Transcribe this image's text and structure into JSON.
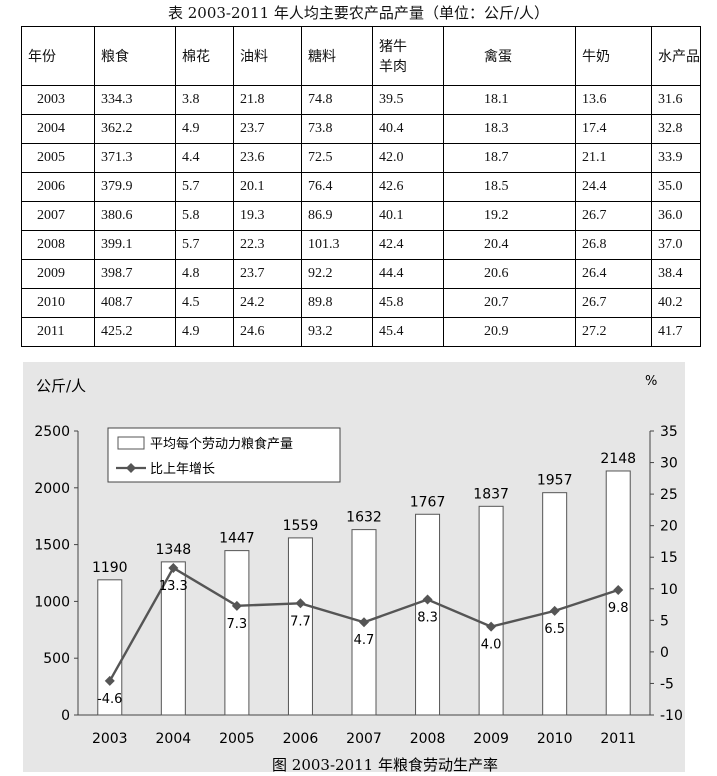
{
  "table": {
    "title": "表 2003-2011 年人均主要农产品产量（单位：公斤/人）",
    "columns": [
      "年份",
      "粮食",
      "棉花",
      "油料",
      "糖料",
      "猪牛羊肉",
      "禽蛋",
      "牛奶",
      "水产品"
    ],
    "rows": [
      [
        "2003",
        "334.3",
        "3.8",
        "21.8",
        "74.8",
        "39.5",
        "18.1",
        "13.6",
        "31.6"
      ],
      [
        "2004",
        "362.2",
        "4.9",
        "23.7",
        "73.8",
        "40.4",
        "18.3",
        "17.4",
        "32.8"
      ],
      [
        "2005",
        "371.3",
        "4.4",
        "23.6",
        "72.5",
        "42.0",
        "18.7",
        "21.1",
        "33.9"
      ],
      [
        "2006",
        "379.9",
        "5.7",
        "20.1",
        "76.4",
        "42.6",
        "18.5",
        "24.4",
        "35.0"
      ],
      [
        "2007",
        "380.6",
        "5.8",
        "19.3",
        "86.9",
        "40.1",
        "19.2",
        "26.7",
        "36.0"
      ],
      [
        "2008",
        "399.1",
        "5.7",
        "22.3",
        "101.3",
        "42.4",
        "20.4",
        "26.8",
        "37.0"
      ],
      [
        "2009",
        "398.7",
        "4.8",
        "23.7",
        "92.2",
        "44.4",
        "20.6",
        "26.4",
        "38.4"
      ],
      [
        "2010",
        "408.7",
        "4.5",
        "24.2",
        "89.8",
        "45.8",
        "20.7",
        "26.7",
        "40.2"
      ],
      [
        "2011",
        "425.2",
        "4.9",
        "24.6",
        "93.2",
        "45.4",
        "20.9",
        "27.2",
        "41.7"
      ]
    ]
  },
  "chart_data": {
    "type": "bar",
    "title": "图 2003-2011 年粮食劳动生产率",
    "categories": [
      "2003",
      "2004",
      "2005",
      "2006",
      "2007",
      "2008",
      "2009",
      "2010",
      "2011"
    ],
    "left_axis_label": "公斤/人",
    "right_axis_label": "%",
    "left_ticks": [
      "0",
      "500",
      "1000",
      "1500",
      "2000",
      "2500"
    ],
    "right_ticks": [
      "-10",
      "-5",
      "0",
      "5",
      "10",
      "15",
      "20",
      "25",
      "30",
      "35"
    ],
    "ylim_left": [
      0,
      2500
    ],
    "ylim_right": [
      -10,
      35
    ],
    "series": [
      {
        "name": "平均每个劳动力粮食产量",
        "kind": "bar",
        "axis": "left",
        "values": [
          1190,
          1348,
          1447,
          1559,
          1632,
          1767,
          1837,
          1957,
          2148
        ],
        "labels": [
          "1190",
          "1348",
          "1447",
          "1559",
          "1632",
          "1767",
          "1837",
          "1957",
          "2148"
        ]
      },
      {
        "name": "比上年增长",
        "kind": "line",
        "axis": "right",
        "values": [
          -4.6,
          13.3,
          7.3,
          7.7,
          4.7,
          8.3,
          4.0,
          6.5,
          9.8
        ],
        "labels": [
          "-4.6",
          "13.3",
          "7.3",
          "7.7",
          "4.7",
          "8.3",
          "4.0",
          "6.5",
          "9.8"
        ]
      }
    ],
    "legend_position": "top-left",
    "colors": {
      "background": "#e6e6e6",
      "bar_fill": "#ffffff",
      "bar_stroke": "#555555",
      "line": "#555555"
    }
  }
}
